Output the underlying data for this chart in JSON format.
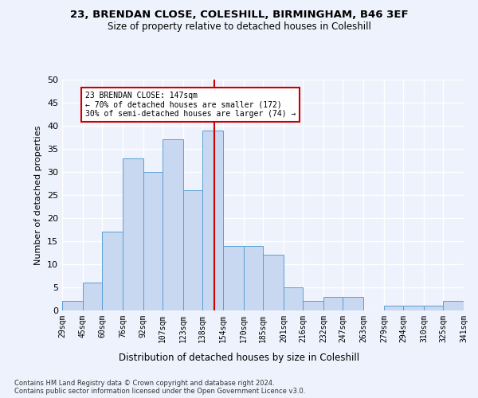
{
  "title1": "23, BRENDAN CLOSE, COLESHILL, BIRMINGHAM, B46 3EF",
  "title2": "Size of property relative to detached houses in Coleshill",
  "xlabel": "Distribution of detached houses by size in Coleshill",
  "ylabel": "Number of detached properties",
  "bin_labels": [
    "29sqm",
    "45sqm",
    "60sqm",
    "76sqm",
    "92sqm",
    "107sqm",
    "123sqm",
    "138sqm",
    "154sqm",
    "170sqm",
    "185sqm",
    "201sqm",
    "216sqm",
    "232sqm",
    "247sqm",
    "263sqm",
    "279sqm",
    "294sqm",
    "310sqm",
    "325sqm",
    "341sqm"
  ],
  "bin_edges": [
    29,
    45,
    60,
    76,
    92,
    107,
    123,
    138,
    154,
    170,
    185,
    201,
    216,
    232,
    247,
    263,
    279,
    294,
    310,
    325,
    341
  ],
  "bar_heights": [
    2,
    6,
    17,
    33,
    30,
    37,
    26,
    39,
    14,
    14,
    12,
    5,
    2,
    3,
    3,
    0,
    1,
    1,
    1,
    2
  ],
  "bar_color": "#c8d8f0",
  "bar_edge_color": "#5a9fd4",
  "vline_x": 147,
  "vline_color": "#cc0000",
  "annotation_text": "23 BRENDAN CLOSE: 147sqm\n← 70% of detached houses are smaller (172)\n30% of semi-detached houses are larger (74) →",
  "annotation_box_color": "#ffffff",
  "annotation_box_edge": "#cc0000",
  "footer1": "Contains HM Land Registry data © Crown copyright and database right 2024.",
  "footer2": "Contains public sector information licensed under the Open Government Licence v3.0.",
  "bg_color": "#eef2fc",
  "grid_color": "#ffffff",
  "ylim": [
    0,
    50
  ],
  "yticks": [
    0,
    5,
    10,
    15,
    20,
    25,
    30,
    35,
    40,
    45,
    50
  ]
}
